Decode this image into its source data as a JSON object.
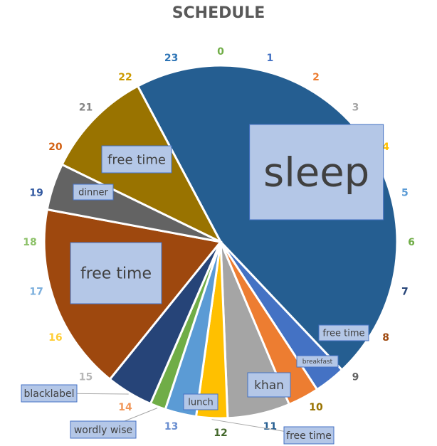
{
  "chart_data": {
    "type": "pie",
    "title": "SCHEDULE",
    "slices": [
      {
        "label": "sleep",
        "value": 8.0,
        "color": "#255e91"
      },
      {
        "label": "free time",
        "value": 0.5,
        "color": "#4472c4"
      },
      {
        "label": "breakfast",
        "value": 0.5,
        "color": "#ed7d31"
      },
      {
        "label": "khan",
        "value": 1.0,
        "color": "#a5a5a5"
      },
      {
        "label": "free time",
        "value": 0.5,
        "color": "#ffc000"
      },
      {
        "label": "lunch",
        "value": 0.5,
        "color": "#5b9bd5"
      },
      {
        "label": "wordly wise",
        "value": 0.25,
        "color": "#70ad47"
      },
      {
        "label": "blacklabel",
        "value": 0.75,
        "color": "#264478"
      },
      {
        "label": "free time",
        "value": 3.0,
        "color": "#9e480e"
      },
      {
        "label": "dinner",
        "value": 0.75,
        "color": "#636363"
      },
      {
        "label": "free time",
        "value": 1.75,
        "color": "#997300"
      }
    ],
    "hour_labels": [
      "0",
      "1",
      "2",
      "3",
      "4",
      "5",
      "6",
      "7",
      "8",
      "9",
      "10",
      "11",
      "12",
      "13",
      "14",
      "15",
      "16",
      "17",
      "18",
      "19",
      "20",
      "21",
      "22",
      "23"
    ],
    "hour_colors": [
      "#70ad47",
      "#4472c4",
      "#ed7d31",
      "#a5a5a5",
      "#ffc000",
      "#5b9bd5",
      "#70ad47",
      "#264478",
      "#9e480e",
      "#636363",
      "#997300",
      "#255e91",
      "#43682b",
      "#698ed0",
      "#f1975a",
      "#b7b7b7",
      "#ffcd33",
      "#7cafdd",
      "#8cc168",
      "#335aa1",
      "#d26012",
      "#848484",
      "#cc9a00",
      "#2e75b6"
    ]
  }
}
